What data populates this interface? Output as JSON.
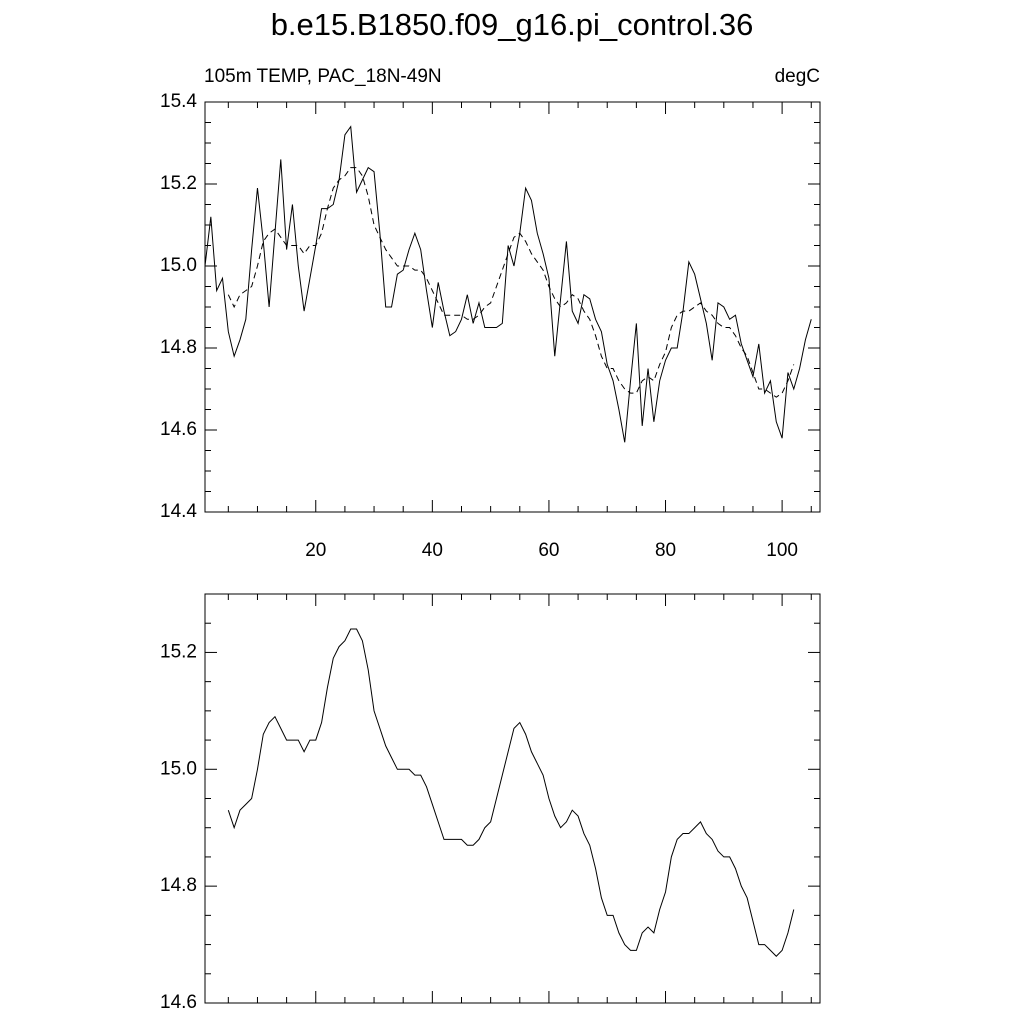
{
  "chart_data": [
    {
      "type": "line",
      "title": "b.e15.B1850.f09_g16.pi_control.36",
      "subtitle_left": "105m TEMP, PAC_18N-49N",
      "subtitle_right": "degC",
      "x": [
        1,
        2,
        3,
        4,
        5,
        6,
        7,
        8,
        9,
        10,
        11,
        12,
        13,
        14,
        15,
        16,
        17,
        18,
        19,
        20,
        21,
        22,
        23,
        24,
        25,
        26,
        27,
        28,
        29,
        30,
        31,
        32,
        33,
        34,
        35,
        36,
        37,
        38,
        39,
        40,
        41,
        42,
        43,
        44,
        45,
        46,
        47,
        48,
        49,
        50,
        51,
        52,
        53,
        54,
        55,
        56,
        57,
        58,
        59,
        60,
        61,
        62,
        63,
        64,
        65,
        66,
        67,
        68,
        69,
        70,
        71,
        72,
        73,
        74,
        75,
        76,
        77,
        78,
        79,
        80,
        81,
        82,
        83,
        84,
        85,
        86,
        87,
        88,
        89,
        90,
        91,
        92,
        93,
        94,
        95,
        96,
        97,
        98,
        99,
        100,
        101,
        102,
        103,
        104,
        105
      ],
      "series": [
        {
          "color": "#000000",
          "line_style": "solid",
          "values": [
            15.0,
            15.12,
            14.94,
            14.97,
            14.84,
            14.78,
            14.82,
            14.87,
            15.04,
            15.19,
            15.06,
            14.9,
            15.08,
            15.26,
            15.04,
            15.15,
            15.0,
            14.89,
            14.97,
            15.05,
            15.14,
            15.14,
            15.15,
            15.21,
            15.32,
            15.34,
            15.18,
            15.21,
            15.24,
            15.23,
            15.08,
            14.9,
            14.9,
            14.98,
            14.99,
            15.04,
            15.08,
            15.04,
            14.94,
            14.85,
            14.96,
            14.89,
            14.83,
            14.84,
            14.87,
            14.93,
            14.86,
            14.91,
            14.85,
            14.85,
            14.85,
            14.86,
            15.05,
            15.0,
            15.08,
            15.19,
            15.16,
            15.08,
            15.03,
            14.97,
            14.78,
            14.92,
            15.06,
            14.89,
            14.86,
            14.93,
            14.92,
            14.87,
            14.84,
            14.76,
            14.72,
            14.65,
            14.57,
            14.72,
            14.86,
            14.61,
            14.75,
            14.62,
            14.72,
            14.77,
            14.8,
            14.8,
            14.89,
            15.01,
            14.98,
            14.92,
            14.86,
            14.77,
            14.91,
            14.9,
            14.87,
            14.88,
            14.81,
            14.77,
            14.73,
            14.81,
            14.69,
            14.72,
            14.62,
            14.58,
            14.74,
            14.7,
            14.75,
            14.82,
            14.87
          ]
        },
        {
          "color": "#000000",
          "line_style": "dashed",
          "values": [
            null,
            null,
            null,
            null,
            14.93,
            14.9,
            14.93,
            14.94,
            14.95,
            15.0,
            15.06,
            15.08,
            15.09,
            15.07,
            15.05,
            15.05,
            15.05,
            15.03,
            15.05,
            15.05,
            15.08,
            15.14,
            15.19,
            15.21,
            15.22,
            15.24,
            15.24,
            15.22,
            15.17,
            15.1,
            15.07,
            15.04,
            15.02,
            15.0,
            15.0,
            15.0,
            14.99,
            14.99,
            14.97,
            14.94,
            14.91,
            14.88,
            14.88,
            14.88,
            14.88,
            14.87,
            14.87,
            14.88,
            14.9,
            14.91,
            14.95,
            14.99,
            15.03,
            15.07,
            15.08,
            15.06,
            15.03,
            15.01,
            14.99,
            14.95,
            14.92,
            14.9,
            14.91,
            14.93,
            14.92,
            14.89,
            14.87,
            14.83,
            14.78,
            14.75,
            14.75,
            14.72,
            14.7,
            14.69,
            14.69,
            14.72,
            14.73,
            14.72,
            14.76,
            14.79,
            14.85,
            14.88,
            14.89,
            14.89,
            14.9,
            14.91,
            14.89,
            14.88,
            14.86,
            14.85,
            14.85,
            14.83,
            14.8,
            14.78,
            14.74,
            14.7,
            14.7,
            14.69,
            14.68,
            14.69,
            14.72,
            14.76,
            null,
            null,
            null
          ]
        }
      ],
      "xlim": [
        1,
        106.5
      ],
      "xticks": [
        20,
        40,
        60,
        80,
        100
      ],
      "xminorticks": [
        5,
        10,
        15,
        25,
        30,
        35,
        45,
        50,
        55,
        65,
        70,
        75,
        85,
        90,
        95,
        105
      ],
      "xtick_labels": true,
      "ylim": [
        14.4,
        15.4
      ],
      "yticks": [
        {
          "value": 14.4,
          "label": "14.4"
        },
        {
          "value": 14.6,
          "label": "14.6"
        },
        {
          "value": 14.8,
          "label": "14.8"
        },
        {
          "value": 15,
          "label": "15.0"
        },
        {
          "value": 15.2,
          "label": "15.2"
        },
        {
          "value": 15.4,
          "label": "15.4"
        }
      ],
      "yminorticks": [
        14.45,
        14.5,
        14.55,
        14.65,
        14.7,
        14.75,
        14.85,
        14.9,
        14.95,
        15.05,
        15.1,
        15.15,
        15.25,
        15.3,
        15.35
      ]
    },
    {
      "type": "line",
      "x": [
        5,
        6,
        7,
        8,
        9,
        10,
        11,
        12,
        13,
        14,
        15,
        16,
        17,
        18,
        19,
        20,
        21,
        22,
        23,
        24,
        25,
        26,
        27,
        28,
        29,
        30,
        31,
        32,
        33,
        34,
        35,
        36,
        37,
        38,
        39,
        40,
        41,
        42,
        43,
        44,
        45,
        46,
        47,
        48,
        49,
        50,
        51,
        52,
        53,
        54,
        55,
        56,
        57,
        58,
        59,
        60,
        61,
        62,
        63,
        64,
        65,
        66,
        67,
        68,
        69,
        70,
        71,
        72,
        73,
        74,
        75,
        76,
        77,
        78,
        79,
        80,
        81,
        82,
        83,
        84,
        85,
        86,
        87,
        88,
        89,
        90,
        91,
        92,
        93,
        94,
        95,
        96,
        97,
        98,
        99,
        100,
        101,
        102
      ],
      "series": [
        {
          "color": "#000000",
          "line_style": "solid",
          "values": [
            14.93,
            14.9,
            14.93,
            14.94,
            14.95,
            15.0,
            15.06,
            15.08,
            15.09,
            15.07,
            15.05,
            15.05,
            15.05,
            15.03,
            15.05,
            15.05,
            15.08,
            15.14,
            15.19,
            15.21,
            15.22,
            15.24,
            15.24,
            15.22,
            15.17,
            15.1,
            15.07,
            15.04,
            15.02,
            15.0,
            15.0,
            15.0,
            14.99,
            14.99,
            14.97,
            14.94,
            14.91,
            14.88,
            14.88,
            14.88,
            14.88,
            14.87,
            14.87,
            14.88,
            14.9,
            14.91,
            14.95,
            14.99,
            15.03,
            15.07,
            15.08,
            15.06,
            15.03,
            15.01,
            14.99,
            14.95,
            14.92,
            14.9,
            14.91,
            14.93,
            14.92,
            14.89,
            14.87,
            14.83,
            14.78,
            14.75,
            14.75,
            14.72,
            14.7,
            14.69,
            14.69,
            14.72,
            14.73,
            14.72,
            14.76,
            14.79,
            14.85,
            14.88,
            14.89,
            14.89,
            14.9,
            14.91,
            14.89,
            14.88,
            14.86,
            14.85,
            14.85,
            14.83,
            14.8,
            14.78,
            14.74,
            14.7,
            14.7,
            14.69,
            14.68,
            14.69,
            14.72,
            14.76
          ]
        }
      ],
      "xlim": [
        1,
        106.5
      ],
      "xticks": [
        20,
        40,
        60,
        80,
        100
      ],
      "xminorticks": [
        5,
        10,
        15,
        25,
        30,
        35,
        45,
        50,
        55,
        65,
        70,
        75,
        85,
        90,
        95,
        105
      ],
      "xtick_labels": false,
      "ylim": [
        14.6,
        15.3
      ],
      "yticks": [
        {
          "value": 14.6,
          "label": "14.6"
        },
        {
          "value": 14.8,
          "label": "14.8"
        },
        {
          "value": 15,
          "label": "15.0"
        },
        {
          "value": 15.2,
          "label": "15.2"
        }
      ],
      "yminorticks": [
        14.65,
        14.7,
        14.75,
        14.85,
        14.9,
        14.95,
        15.05,
        15.1,
        15.15,
        15.25
      ]
    }
  ]
}
